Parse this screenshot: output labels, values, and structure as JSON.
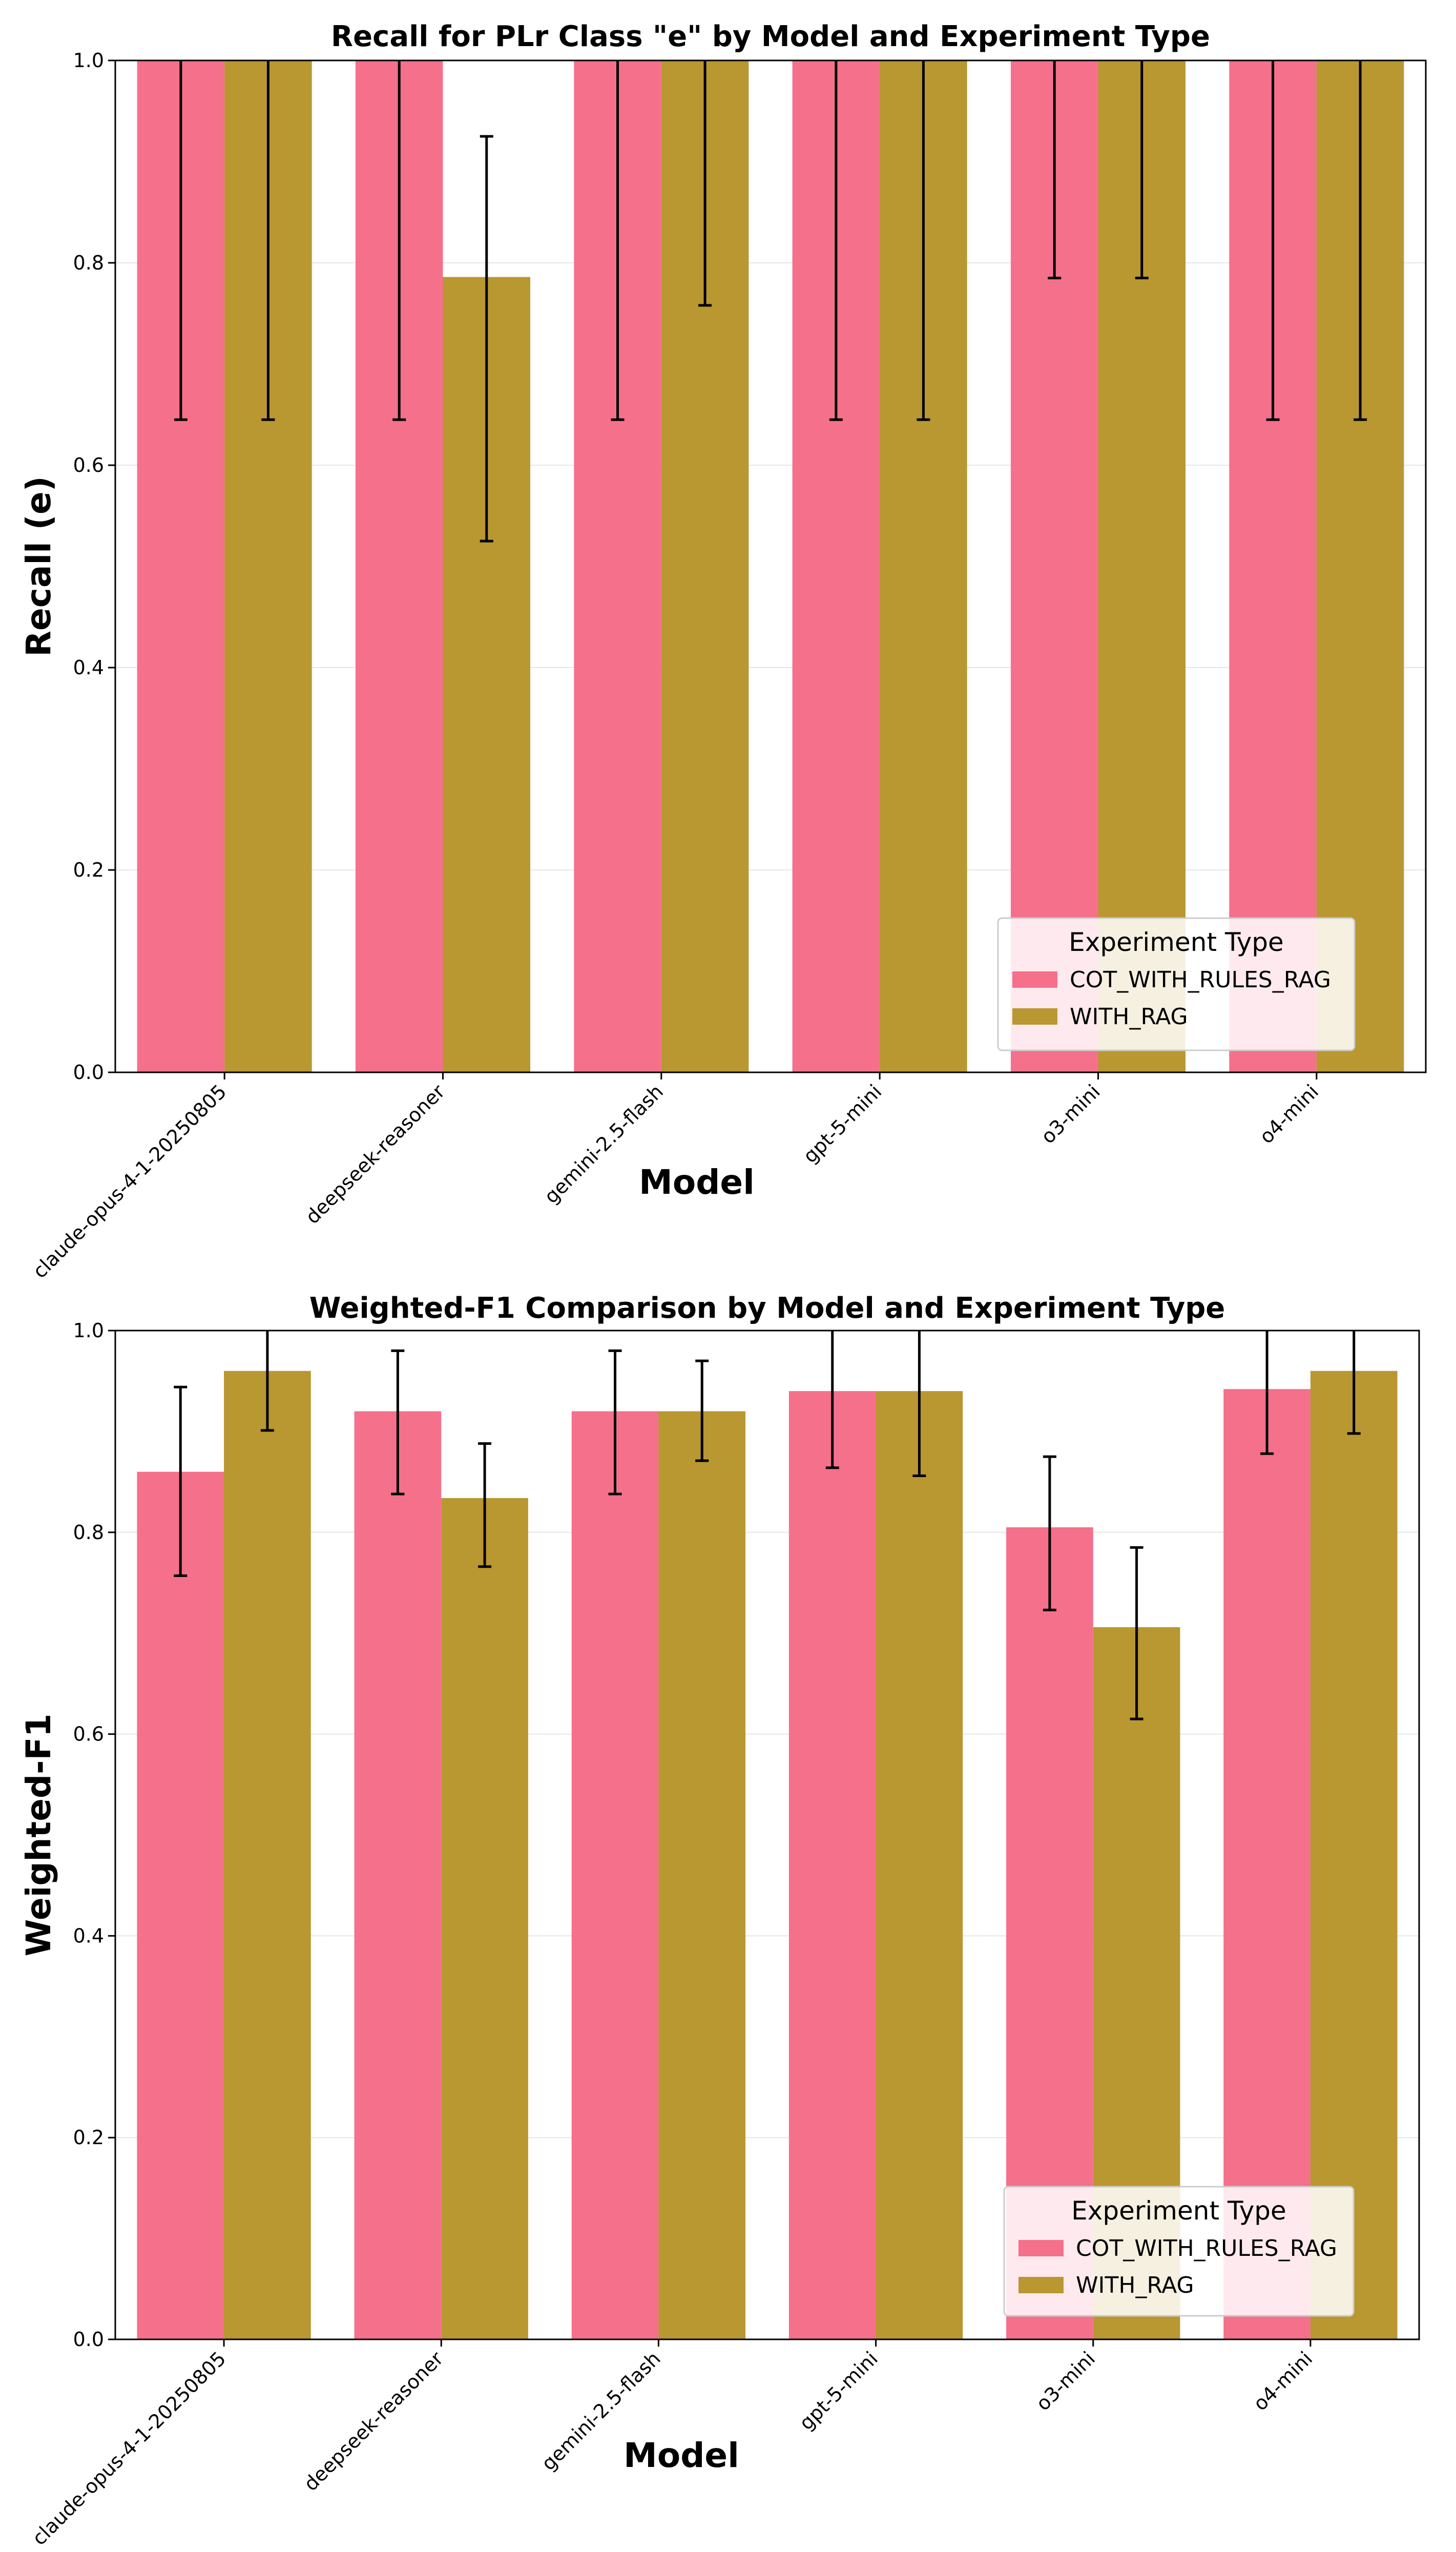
{
  "figure": {
    "series_colors": [
      "#f5708b",
      "#b99731"
    ]
  },
  "chart_data": [
    {
      "type": "bar",
      "title": "Recall for PLr Class \"e\" by Model and Experiment Type",
      "xlabel": "Model",
      "ylabel": "Recall (e)",
      "ylim": [
        0,
        1
      ],
      "yticks": [
        "0.0",
        "0.2",
        "0.4",
        "0.6",
        "0.8",
        "1.0"
      ],
      "grid": true,
      "legend": {
        "title": "Experiment Type",
        "placement": "bottom-right",
        "entries": [
          "COT_WITH_RULES_RAG",
          "WITH_RAG"
        ]
      },
      "categories": [
        "claude-opus-4-1-20250805",
        "deepseek-reasoner",
        "gemini-2.5-flash",
        "gpt-5-mini",
        "o3-mini",
        "o4-mini"
      ],
      "series": [
        {
          "name": "COT_WITH_RULES_RAG",
          "values": [
            1.0,
            1.0,
            1.0,
            1.0,
            1.0,
            1.0
          ],
          "err_low": [
            0.645,
            0.645,
            0.645,
            0.645,
            0.785,
            0.645
          ],
          "err_high": [
            1.0,
            1.0,
            1.0,
            1.0,
            1.0,
            1.0
          ]
        },
        {
          "name": "WITH_RAG",
          "values": [
            1.0,
            0.786,
            1.0,
            1.0,
            1.0,
            1.0
          ],
          "err_low": [
            0.645,
            0.525,
            0.758,
            0.645,
            0.785,
            0.645
          ],
          "err_high": [
            1.0,
            0.925,
            1.0,
            1.0,
            1.0,
            1.0
          ]
        }
      ]
    },
    {
      "type": "bar",
      "title": "Weighted-F1 Comparison by Model and Experiment Type",
      "xlabel": "Model",
      "ylabel": "Weighted-F1",
      "ylim": [
        0,
        1
      ],
      "yticks": [
        "0.0",
        "0.2",
        "0.4",
        "0.6",
        "0.8",
        "1.0"
      ],
      "grid": true,
      "legend": {
        "title": "Experiment Type",
        "placement": "bottom-right",
        "entries": [
          "COT_WITH_RULES_RAG",
          "WITH_RAG"
        ]
      },
      "categories": [
        "claude-opus-4-1-20250805",
        "deepseek-reasoner",
        "gemini-2.5-flash",
        "gpt-5-mini",
        "o3-mini",
        "o4-mini"
      ],
      "series": [
        {
          "name": "COT_WITH_RULES_RAG",
          "values": [
            0.86,
            0.92,
            0.92,
            0.94,
            0.805,
            0.942
          ],
          "err_low": [
            0.757,
            0.838,
            0.838,
            0.864,
            0.723,
            0.878
          ],
          "err_high": [
            0.944,
            0.98,
            0.98,
            1.0,
            0.875,
            1.0
          ]
        },
        {
          "name": "WITH_RAG",
          "values": [
            0.96,
            0.834,
            0.92,
            0.94,
            0.706,
            0.96
          ],
          "err_low": [
            0.901,
            0.766,
            0.871,
            0.856,
            0.615,
            0.898
          ],
          "err_high": [
            1.0,
            0.888,
            0.97,
            1.0,
            0.785,
            1.0
          ]
        }
      ]
    }
  ]
}
